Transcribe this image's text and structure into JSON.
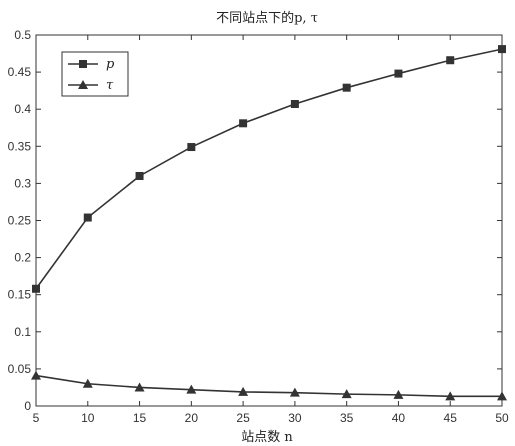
{
  "chart_data": {
    "type": "line",
    "title": "不同站点下的p, τ",
    "xlabel": "站点数 n",
    "ylabel": "",
    "x": [
      5,
      10,
      15,
      20,
      25,
      30,
      35,
      40,
      45,
      50
    ],
    "xlim": [
      5,
      50
    ],
    "ylim": [
      0,
      0.5
    ],
    "xticks": [
      "5",
      "10",
      "15",
      "20",
      "25",
      "30",
      "35",
      "40",
      "45",
      "50"
    ],
    "yticks": [
      "0",
      "0.05",
      "0.1",
      "0.15",
      "0.2",
      "0.25",
      "0.3",
      "0.35",
      "0.4",
      "0.45",
      "0.5"
    ],
    "grid": false,
    "legend_position": "top-left",
    "series": [
      {
        "name": "p",
        "marker": "square",
        "values": [
          0.158,
          0.254,
          0.31,
          0.349,
          0.381,
          0.407,
          0.429,
          0.448,
          0.466,
          0.481
        ]
      },
      {
        "name": "τ",
        "marker": "triangle",
        "values": [
          0.041,
          0.03,
          0.025,
          0.022,
          0.019,
          0.018,
          0.016,
          0.015,
          0.013,
          0.013
        ]
      }
    ],
    "line_color": "#333333"
  }
}
